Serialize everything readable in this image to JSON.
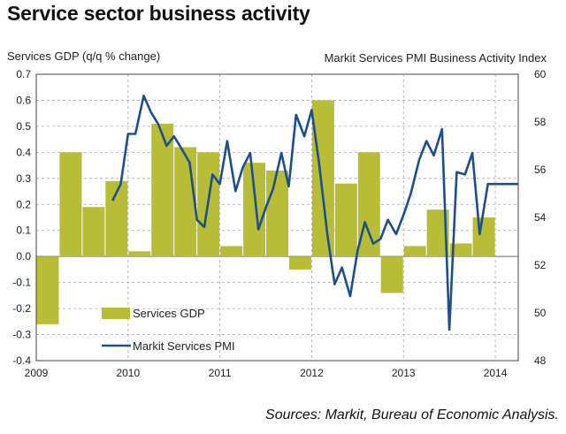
{
  "chart_data": {
    "type": "bar+line",
    "title": "Service sector business activity",
    "left_axis_label": "Services GDP (q/q % change)",
    "right_axis_label": "Markit Services PMI Business Activity Index",
    "source": "Sources: Markit, Bureau of Economic Analysis.",
    "left_ylim": [
      -0.4,
      0.7
    ],
    "left_ticks": [
      "0.7",
      "0.6",
      "0.5",
      "0.4",
      "0.3",
      "0.2",
      "0.1",
      "0.0",
      "-0.1",
      "-0.2",
      "-0.3",
      "-0.4"
    ],
    "right_ylim": [
      48,
      60
    ],
    "right_ticks": [
      "60",
      "58",
      "56",
      "54",
      "52",
      "50",
      "48"
    ],
    "x_range": [
      2009,
      2014.25
    ],
    "x_ticks": [
      "2009",
      "2010",
      "2011",
      "2012",
      "2013",
      "2014"
    ],
    "gridlines": true,
    "bar_color": "#b7bd36",
    "line_color": "#1f4e8c",
    "legend": [
      {
        "label": "Services GDP"
      },
      {
        "label": "Markit Services PMI"
      }
    ],
    "gdp_bars": {
      "name": "Services GDP",
      "x": [
        2009.0,
        2009.25,
        2009.5,
        2009.75,
        2010.0,
        2010.25,
        2010.5,
        2010.75,
        2011.0,
        2011.25,
        2011.5,
        2011.75,
        2012.0,
        2012.25,
        2012.5,
        2012.75,
        2013.0,
        2013.25,
        2013.5,
        2013.75
      ],
      "values": [
        -0.26,
        0.4,
        0.19,
        0.29,
        0.02,
        0.51,
        0.42,
        0.4,
        0.04,
        0.36,
        0.33,
        -0.05,
        0.6,
        0.28,
        0.4,
        -0.14,
        0.04,
        0.18,
        0.05,
        0.15
      ]
    },
    "pmi_line": {
      "name": "Markit Services PMI",
      "x": [
        2009.83,
        2009.92,
        2010.0,
        2010.08,
        2010.17,
        2010.25,
        2010.33,
        2010.42,
        2010.5,
        2010.58,
        2010.67,
        2010.75,
        2010.83,
        2010.92,
        2011.0,
        2011.08,
        2011.17,
        2011.25,
        2011.33,
        2011.42,
        2011.5,
        2011.58,
        2011.67,
        2011.75,
        2011.83,
        2011.92,
        2012.0,
        2012.08,
        2012.17,
        2012.25,
        2012.33,
        2012.42,
        2012.5,
        2012.58,
        2012.67,
        2012.75,
        2012.83,
        2012.92,
        2013.0,
        2013.08,
        2013.17,
        2013.25,
        2013.33,
        2013.42,
        2013.5,
        2013.58,
        2013.67,
        2013.75,
        2013.83,
        2013.92,
        2014.0,
        2014.08,
        2014.17,
        2014.25
      ],
      "values": [
        54.7,
        55.4,
        57.5,
        57.5,
        59.1,
        58.4,
        57.9,
        57.0,
        57.4,
        56.9,
        56.3,
        53.9,
        53.6,
        55.8,
        55.4,
        57.2,
        55.1,
        56.1,
        56.7,
        53.5,
        54.4,
        55.2,
        56.7,
        55.3,
        58.3,
        57.4,
        58.5,
        56.3,
        53.3,
        51.2,
        51.9,
        50.7,
        52.6,
        53.8,
        52.9,
        53.1,
        53.9,
        53.3,
        54.1,
        55.0,
        56.4,
        57.2,
        56.6,
        57.7,
        49.3,
        55.9,
        55.8,
        56.7,
        53.3,
        55.4,
        55.4,
        55.4,
        55.4,
        55.4
      ]
    }
  }
}
